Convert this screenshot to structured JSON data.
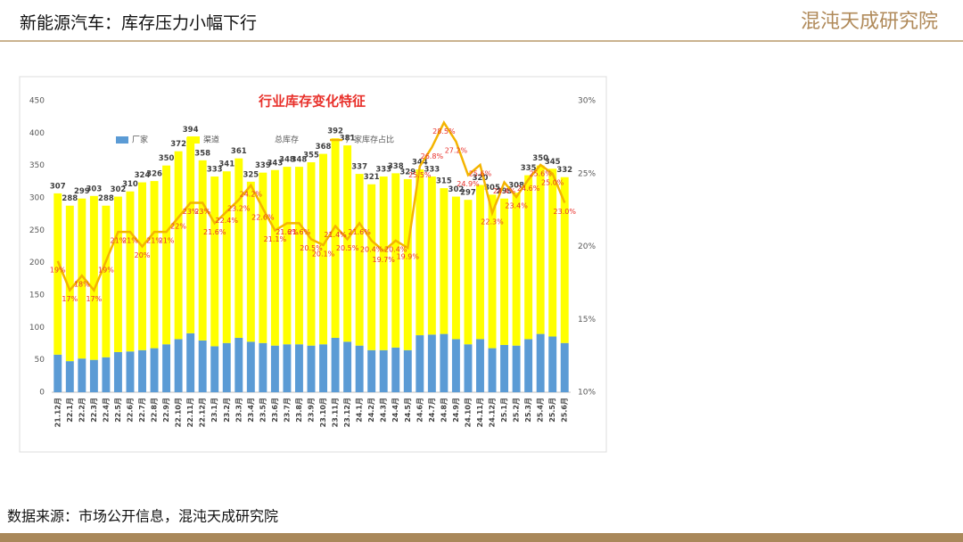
{
  "header": {
    "title": "新能源汽车：库存压力小幅下行",
    "logo": "混沌天成研究院"
  },
  "source": "数据来源：市场公开信息，混沌天成研究院",
  "chart_data": {
    "type": "bar",
    "title": "行业库存变化特征",
    "categories": [
      "21.12月",
      "22.1月",
      "22.2月",
      "22.3月",
      "22.4月",
      "22.5月",
      "22.6月",
      "22.7月",
      "22.8月",
      "22.9月",
      "22.10月",
      "22.11月",
      "22.12月",
      "23.1月",
      "23.2月",
      "23.3月",
      "23.4月",
      "23.5月",
      "23.6月",
      "23.7月",
      "23.8月",
      "23.9月",
      "23.10月",
      "23.11月",
      "23.12月",
      "24.1月",
      "24.2月",
      "24.3月",
      "24.4月",
      "24.5月",
      "24.6月",
      "24.7月",
      "24.8月",
      "24.9月",
      "24.10月",
      "24.11月",
      "24.12月",
      "25.1月",
      "25.2月",
      "25.3月",
      "25.4月",
      "25.5月",
      "25.6月"
    ],
    "series": [
      {
        "name": "厂家",
        "color": "#5b9bd5",
        "values": [
          58,
          48,
          52,
          50,
          54,
          62,
          63,
          65,
          68,
          74,
          82,
          91,
          80,
          71,
          76,
          84,
          78,
          76,
          72,
          74,
          74,
          72,
          74,
          84,
          78,
          72,
          65,
          65,
          69,
          65,
          88,
          89,
          90,
          82,
          74,
          82,
          68,
          73,
          72,
          82,
          90,
          86,
          76
        ]
      },
      {
        "name": "渠道",
        "color": "#ffff00",
        "values": [
          249,
          240,
          247,
          253,
          234,
          240,
          247,
          259,
          258,
          276,
          290,
          303,
          278,
          262,
          265,
          277,
          247,
          263,
          271,
          274,
          274,
          283,
          294,
          308,
          303,
          265,
          256,
          268,
          269,
          264,
          256,
          244,
          225,
          220,
          223,
          238,
          237,
          226,
          236,
          253,
          260,
          259,
          256
        ]
      },
      {
        "name": "总库存",
        "color": "#404040",
        "values": [
          307,
          288,
          299,
          303,
          288,
          302,
          310,
          324,
          326,
          350,
          372,
          394,
          358,
          333,
          341,
          361,
          325,
          339,
          343,
          348,
          348,
          355,
          368,
          392,
          381,
          337,
          321,
          333,
          338,
          329,
          344,
          333,
          315,
          302,
          297,
          320,
          305,
          299,
          308,
          335,
          350,
          345,
          332
        ]
      },
      {
        "name": "厂家库存占比",
        "color": "#f4b400",
        "axis": "y2",
        "label_color": "#e8302a",
        "values": [
          19,
          17,
          18,
          17,
          19,
          21,
          21,
          20,
          21,
          21,
          22,
          23,
          23,
          21.6,
          22.4,
          23.2,
          24.2,
          22.6,
          21.1,
          21.6,
          21.6,
          20.5,
          20.1,
          21.4,
          20.5,
          21.6,
          20.4,
          19.7,
          20.4,
          19.9,
          25.5,
          26.8,
          28.5,
          27.2,
          24.9,
          25.6,
          22.3,
          24.4,
          23.4,
          24.6,
          25.6,
          25.0,
          23.0
        ],
        "value_labels": [
          "19%",
          "17%",
          "18%",
          "17%",
          "19%",
          "21%",
          "21%",
          "20%",
          "21%",
          "21%",
          "22%",
          "23%",
          "23%",
          "21.6%",
          "22.4%",
          "23.2%",
          "24.2%",
          "22.6%",
          "21.1%",
          "21.6%",
          "21.6%",
          "20.5%",
          "20.1%",
          "21.4%",
          "20.5%",
          "21.6%",
          "20.4%",
          "19.7%",
          "20.4%",
          "19.9%",
          "25.5%",
          "26.8%",
          "28.5%",
          "27.2%",
          "24.9%",
          "25.6%",
          "22.3%",
          "24.4%",
          "23.4%",
          "24.6%",
          "25.6%",
          "25.0%",
          "23.0%"
        ]
      }
    ],
    "ylim": [
      0,
      450
    ],
    "yticks": [
      0,
      50,
      100,
      150,
      200,
      250,
      300,
      350,
      400,
      450
    ],
    "y2lim": [
      10,
      30
    ],
    "y2ticks": [
      {
        "value": 10,
        "label": "10%"
      },
      {
        "value": 15,
        "label": "15%"
      },
      {
        "value": 20,
        "label": "20%"
      },
      {
        "value": 25,
        "label": "25%"
      },
      {
        "value": 30,
        "label": "30%"
      }
    ],
    "legend": "top"
  }
}
